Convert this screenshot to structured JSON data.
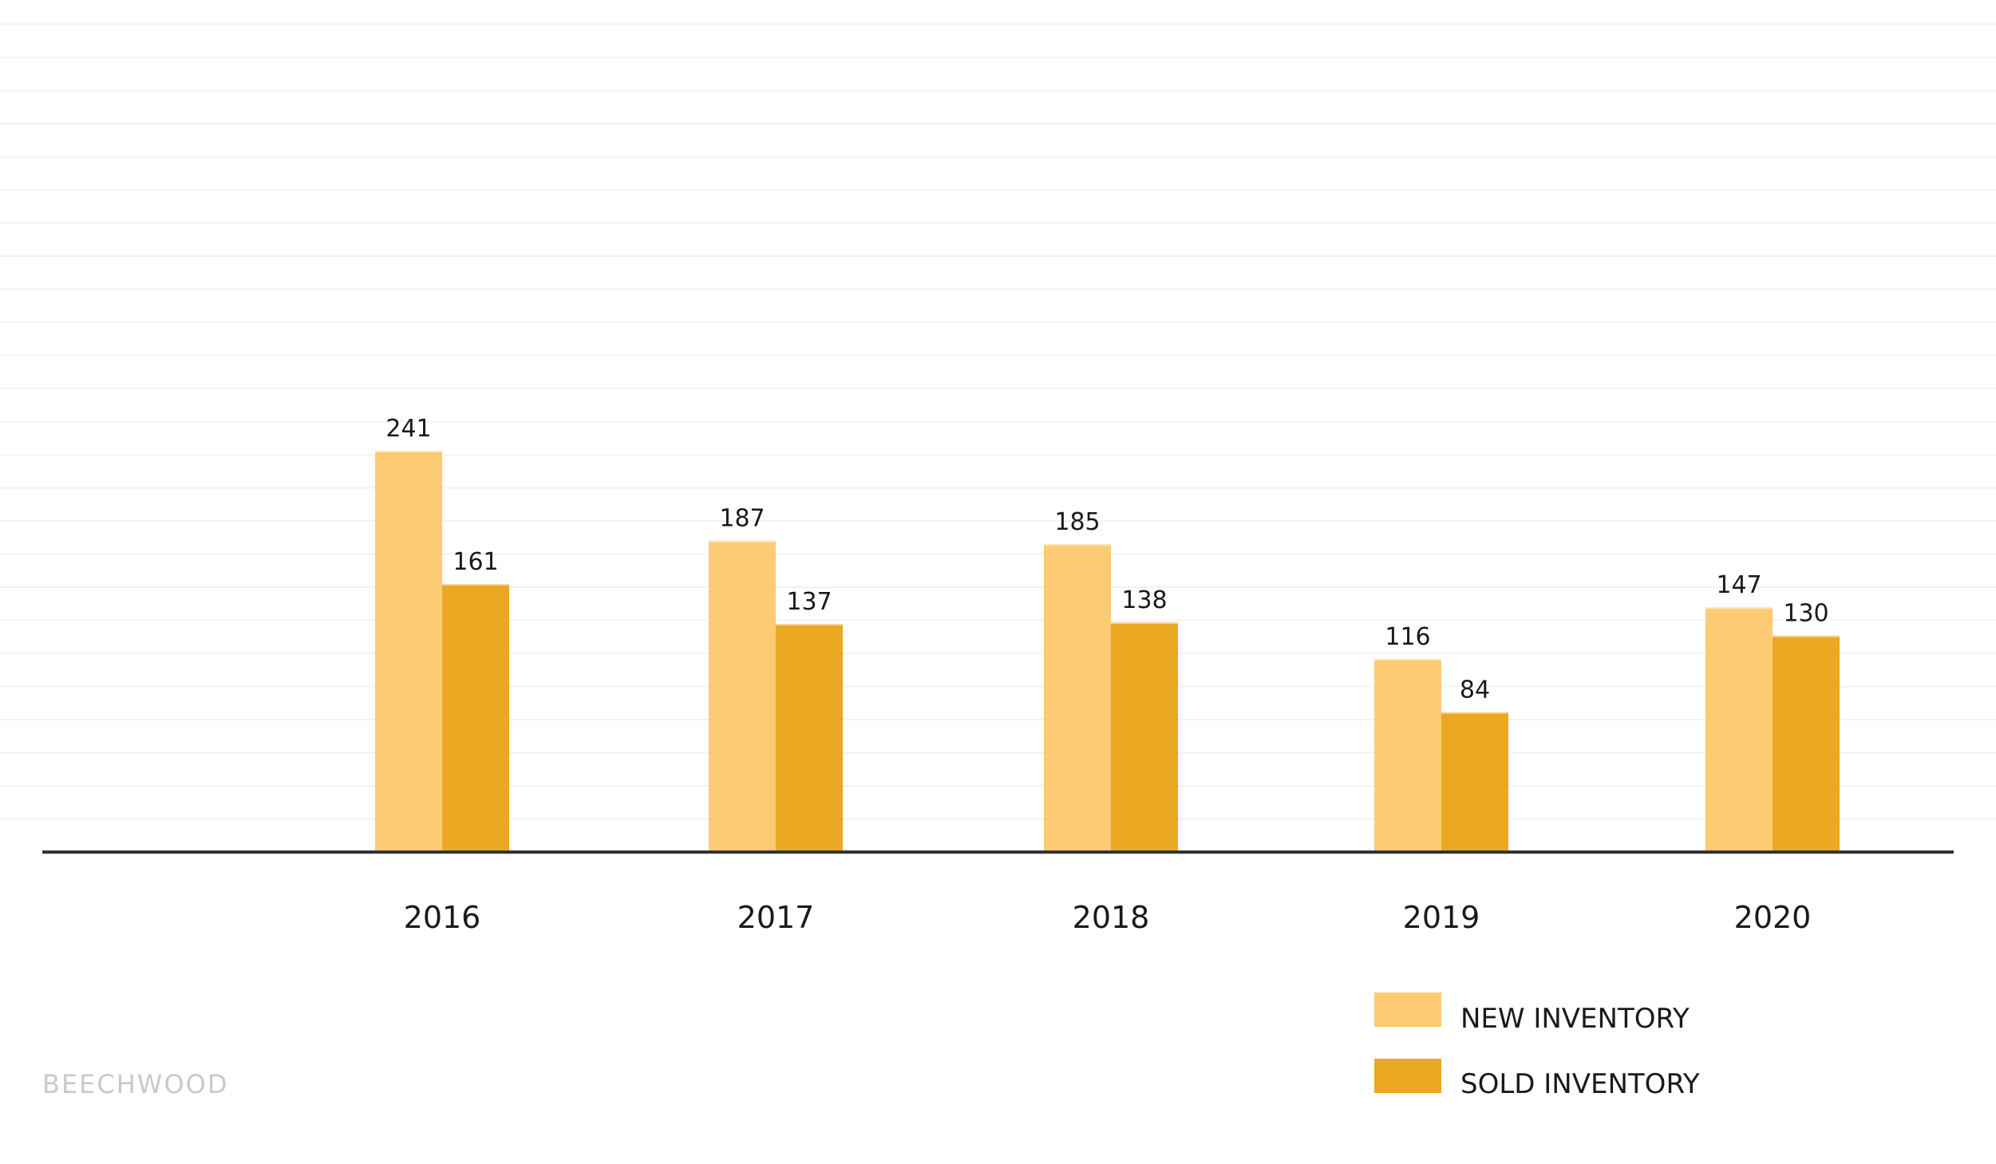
{
  "brand": "BEECHWOOD",
  "colors": {
    "new": "#FCCB74",
    "sold": "#EAA823",
    "axis": "#333333",
    "grid": "#f2f2f2"
  },
  "chart_data": {
    "type": "bar",
    "categories": [
      "2016",
      "2017",
      "2018",
      "2019",
      "2020"
    ],
    "series": [
      {
        "name": "NEW INVENTORY",
        "values": [
          241,
          187,
          185,
          116,
          147
        ]
      },
      {
        "name": "SOLD INVENTORY",
        "values": [
          161,
          137,
          138,
          84,
          130
        ]
      }
    ],
    "title": "",
    "xlabel": "",
    "ylabel": "",
    "ylim": [
      0,
      241
    ],
    "grid": true,
    "legend": "bottom-right"
  }
}
